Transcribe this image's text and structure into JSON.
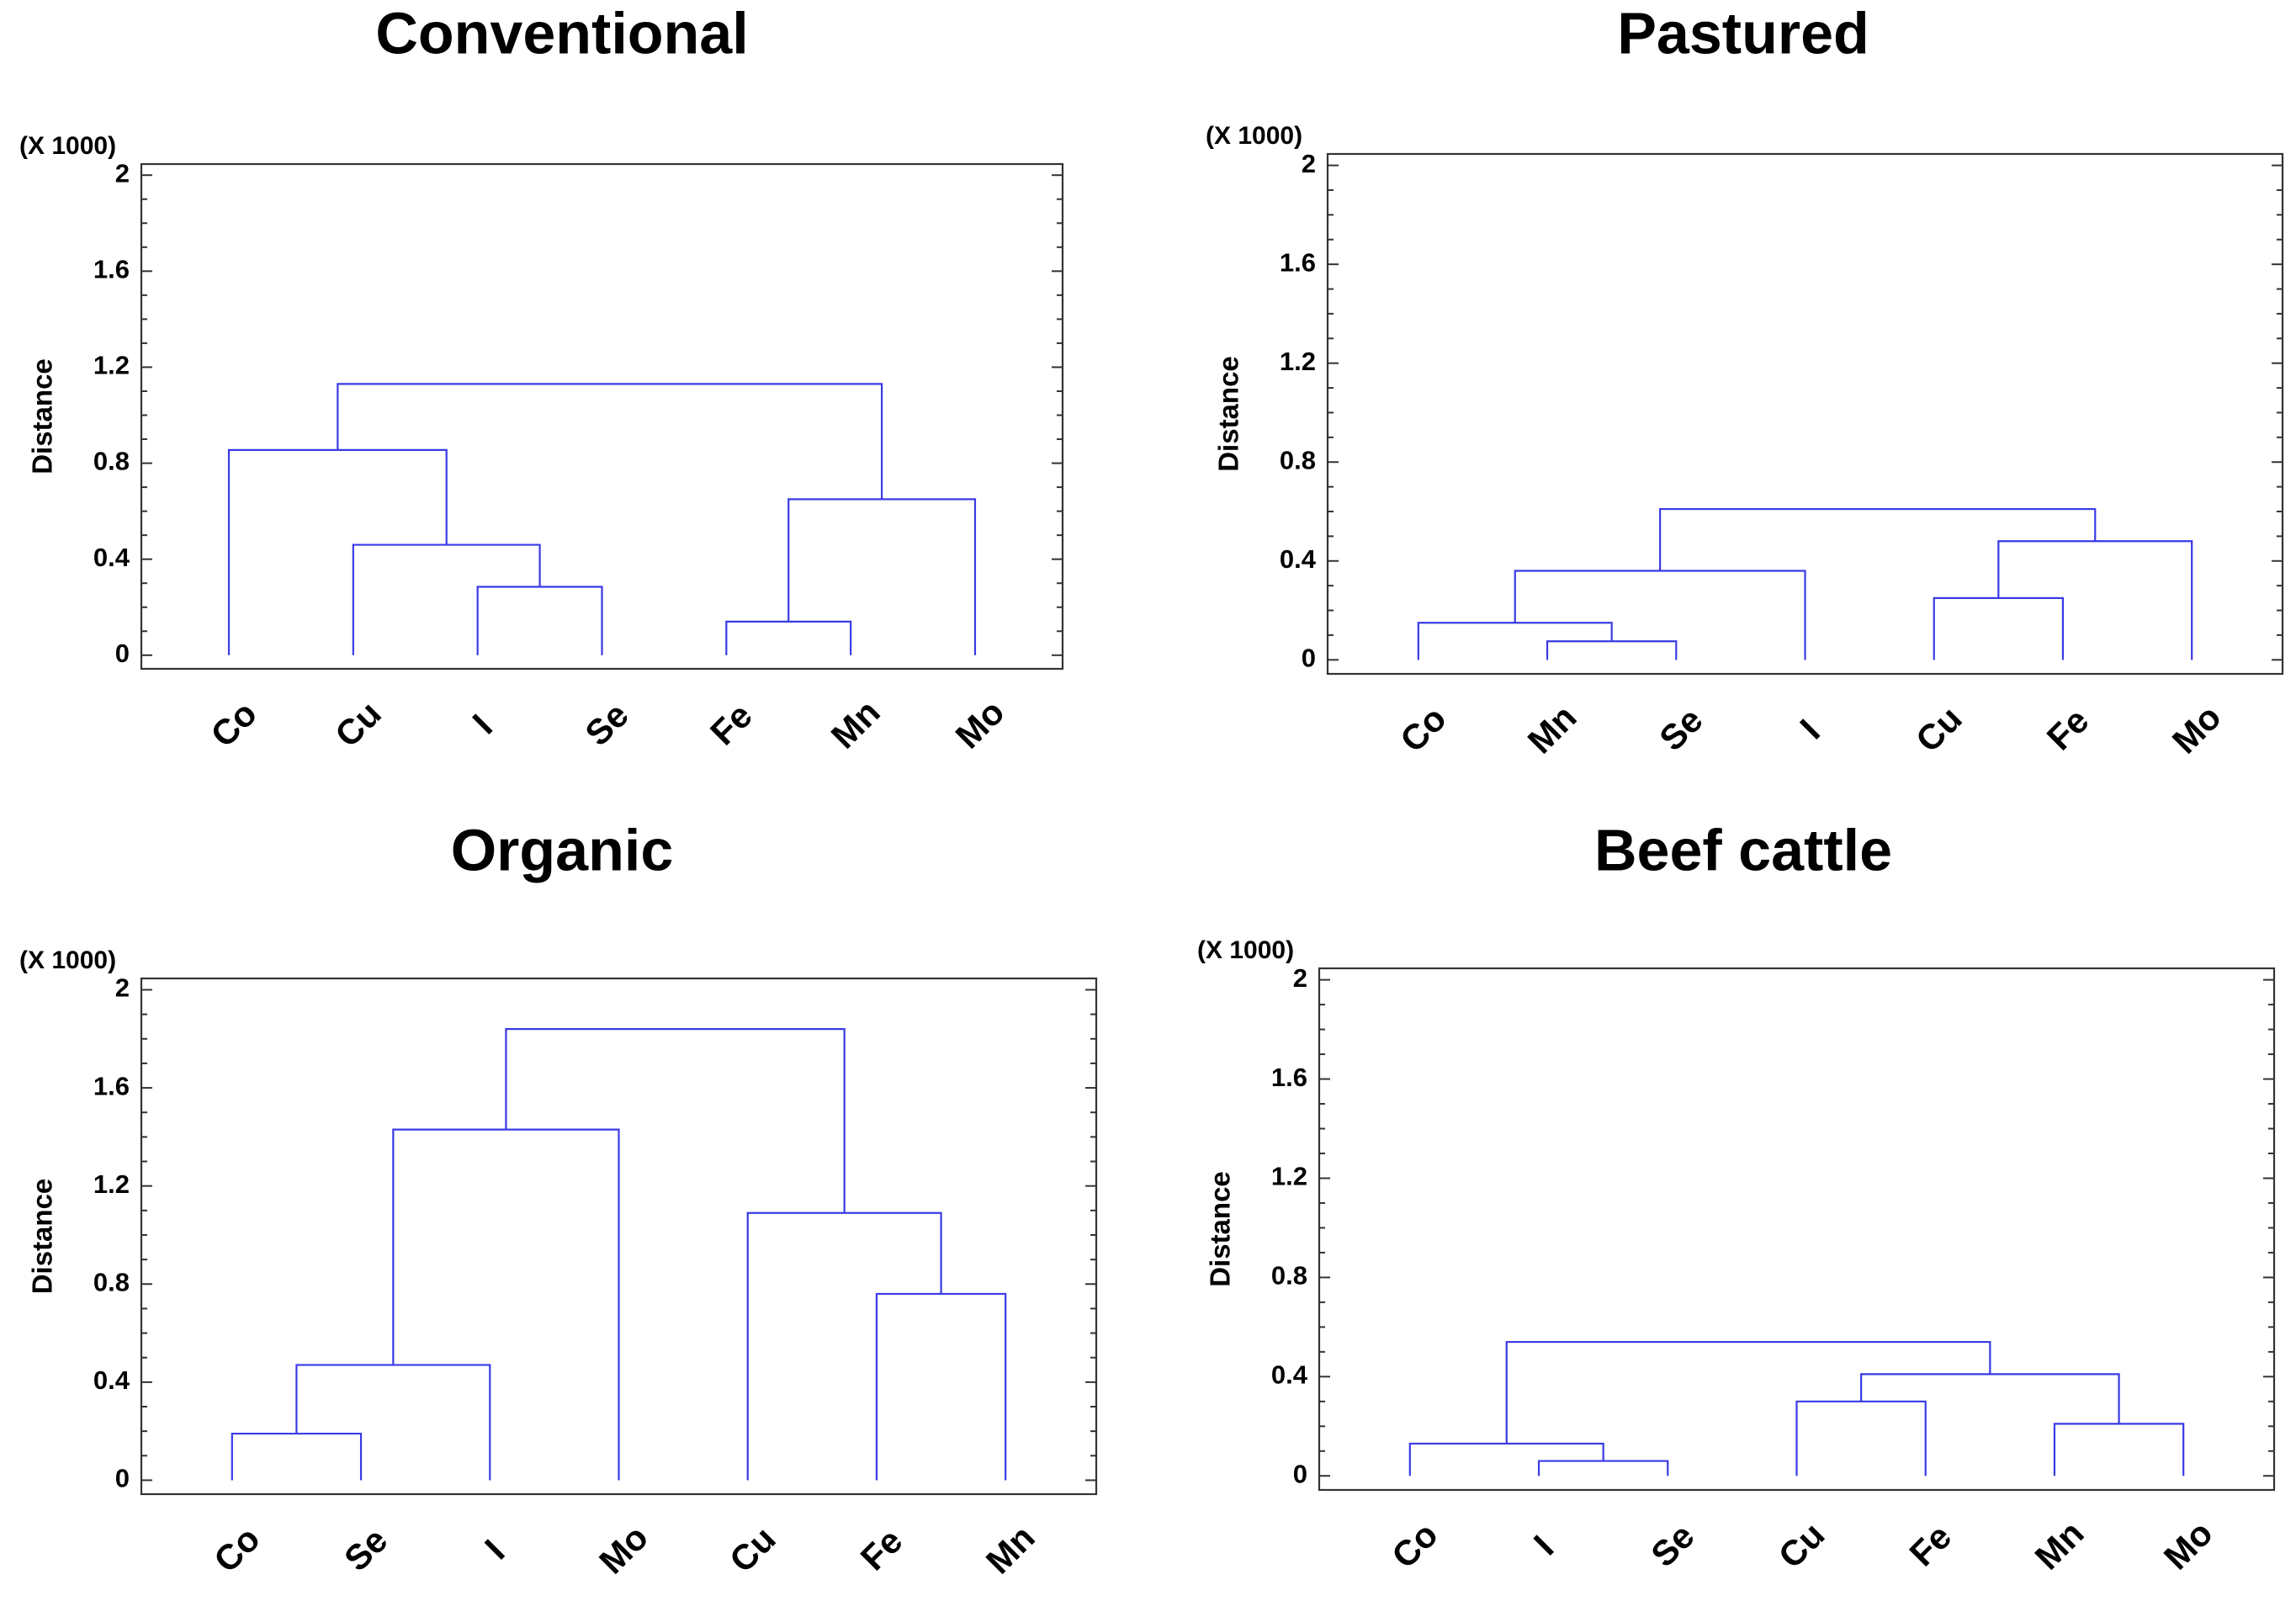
{
  "colors": {
    "link": "#3a3ae6",
    "axis": "#333333",
    "text": "#000000",
    "background": "#ffffff"
  },
  "chart_data": [
    {
      "type": "dendrogram",
      "title": "Conventional",
      "ylabel": "Distance",
      "multiplier": "(X 1000)",
      "ylim": [
        0,
        2
      ],
      "yticks": [
        "0",
        "0.4",
        "0.8",
        "1.2",
        "1.6",
        "2"
      ],
      "leaves": [
        "Co",
        "Cu",
        "I",
        "Se",
        "Fe",
        "Mn",
        "Mo"
      ],
      "merges": [
        {
          "a": "leaf:2",
          "b": "leaf:3",
          "height": 0.285
        },
        {
          "a": "leaf:1",
          "b": "node:0",
          "height": 0.46
        },
        {
          "a": "leaf:0",
          "b": "node:1",
          "height": 0.855
        },
        {
          "a": "leaf:4",
          "b": "leaf:5",
          "height": 0.14
        },
        {
          "a": "node:3",
          "b": "leaf:6",
          "height": 0.65
        },
        {
          "a": "node:2",
          "b": "node:4",
          "height": 1.13
        }
      ]
    },
    {
      "type": "dendrogram",
      "title": "Pastured",
      "ylabel": "Distance",
      "multiplier": "(X 1000)",
      "ylim": [
        0,
        2
      ],
      "yticks": [
        "0",
        "0.4",
        "0.8",
        "1.2",
        "1.6",
        "2"
      ],
      "leaves": [
        "Co",
        "Mn",
        "Se",
        "I",
        "Cu",
        "Fe",
        "Mo"
      ],
      "merges": [
        {
          "a": "leaf:1",
          "b": "leaf:2",
          "height": 0.075
        },
        {
          "a": "leaf:0",
          "b": "node:0",
          "height": 0.15
        },
        {
          "a": "node:1",
          "b": "leaf:3",
          "height": 0.36
        },
        {
          "a": "leaf:4",
          "b": "leaf:5",
          "height": 0.25
        },
        {
          "a": "node:3",
          "b": "leaf:6",
          "height": 0.48
        },
        {
          "a": "node:2",
          "b": "node:4",
          "height": 0.61
        }
      ]
    },
    {
      "type": "dendrogram",
      "title": "Organic",
      "ylabel": "Distance",
      "multiplier": "(X 1000)",
      "ylim": [
        0,
        2
      ],
      "yticks": [
        "0",
        "0.4",
        "0.8",
        "1.2",
        "1.6",
        "2"
      ],
      "leaves": [
        "Co",
        "Se",
        "I",
        "Mo",
        "Cu",
        "Fe",
        "Mn"
      ],
      "merges": [
        {
          "a": "leaf:0",
          "b": "leaf:1",
          "height": 0.19
        },
        {
          "a": "node:0",
          "b": "leaf:2",
          "height": 0.47
        },
        {
          "a": "node:1",
          "b": "leaf:3",
          "height": 1.43
        },
        {
          "a": "leaf:5",
          "b": "leaf:6",
          "height": 0.76
        },
        {
          "a": "leaf:4",
          "b": "node:3",
          "height": 1.09
        },
        {
          "a": "node:2",
          "b": "node:4",
          "height": 1.84
        }
      ]
    },
    {
      "type": "dendrogram",
      "title": "Beef cattle",
      "ylabel": "Distance",
      "multiplier": "(X 1000)",
      "ylim": [
        0,
        2
      ],
      "yticks": [
        "0",
        "0.4",
        "0.8",
        "1.2",
        "1.6",
        "2"
      ],
      "leaves": [
        "Co",
        "I",
        "Se",
        "Cu",
        "Fe",
        "Mn",
        "Mo"
      ],
      "merges": [
        {
          "a": "leaf:1",
          "b": "leaf:2",
          "height": 0.06
        },
        {
          "a": "leaf:0",
          "b": "node:0",
          "height": 0.13
        },
        {
          "a": "leaf:3",
          "b": "leaf:4",
          "height": 0.3
        },
        {
          "a": "leaf:5",
          "b": "leaf:6",
          "height": 0.21
        },
        {
          "a": "node:2",
          "b": "node:3",
          "height": 0.41
        },
        {
          "a": "node:1",
          "b": "node:4",
          "height": 0.54
        }
      ]
    }
  ]
}
